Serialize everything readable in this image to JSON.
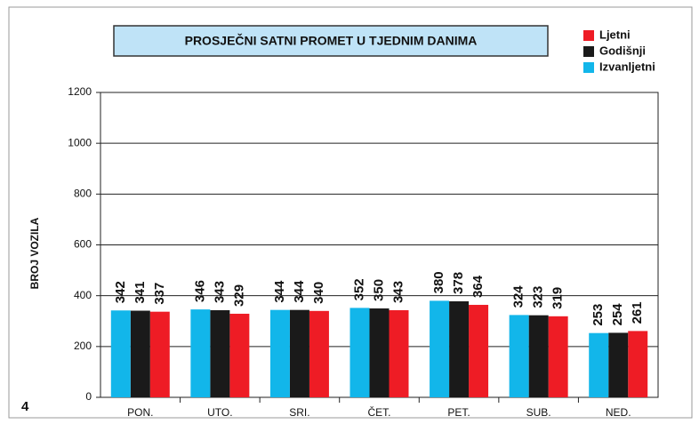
{
  "chart_data": {
    "type": "bar",
    "title": "PROSJEČNI SATNI PROMET U TJEDNIM DANIMA",
    "ylabel": "BROJ VOZILA",
    "annotation": "4",
    "categories": [
      "PON.",
      "UTO.",
      "SRI.",
      "ČET.",
      "PET.",
      "SUB.",
      "NED."
    ],
    "series": [
      {
        "name": "Ljetni",
        "color": "#ee1c25",
        "values": [
          337,
          329,
          340,
          343,
          364,
          319,
          261
        ]
      },
      {
        "name": "Godišnji",
        "color": "#1a1a1a",
        "values": [
          341,
          343,
          344,
          350,
          378,
          323,
          254
        ]
      },
      {
        "name": "Izvanljetni",
        "color": "#12b6ea",
        "values": [
          342,
          346,
          344,
          352,
          380,
          324,
          253
        ]
      }
    ],
    "ylim": [
      0,
      1200
    ],
    "yticks": [
      0,
      200,
      400,
      600,
      800,
      1000,
      1200
    ],
    "grid": true,
    "legend": "top-right"
  }
}
